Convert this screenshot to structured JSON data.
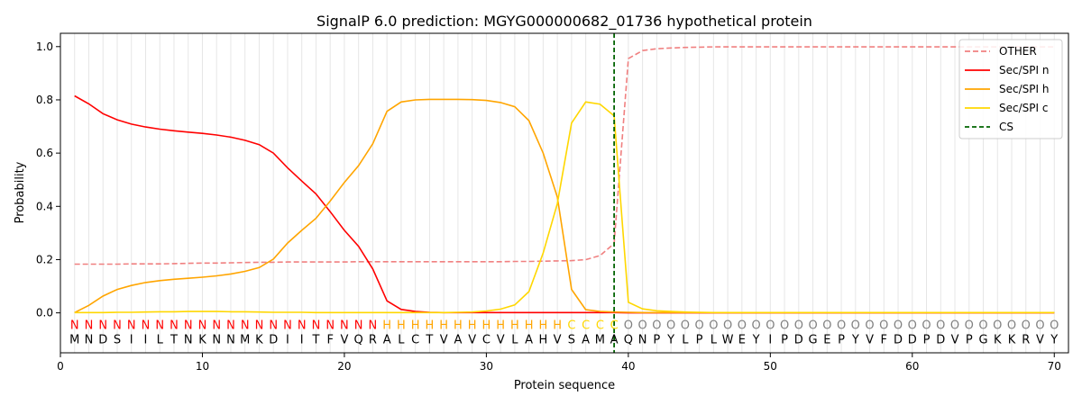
{
  "chart_data": {
    "type": "line",
    "title": "SignalP 6.0 prediction: MGYG000000682_01736 hypothetical protein",
    "xlabel": "Protein sequence",
    "ylabel": "Probability",
    "xlim": [
      0,
      71
    ],
    "ylim": [
      -0.15,
      1.05
    ],
    "xticks": [
      0,
      10,
      20,
      30,
      40,
      50,
      60,
      70
    ],
    "yticks": [
      0.0,
      0.2,
      0.4,
      0.6,
      0.8,
      1.0
    ],
    "ytick_labels": [
      "0.0",
      "0.2",
      "0.4",
      "0.6",
      "0.8",
      "1.0"
    ],
    "grid": "vertical lines at every residue",
    "legend_position": "top-right",
    "cleavage_site": {
      "name": "CS",
      "x": 39,
      "color": "#006400"
    },
    "sequence": [
      "M",
      "N",
      "D",
      "S",
      "I",
      "I",
      "L",
      "T",
      "N",
      "K",
      "N",
      "N",
      "M",
      "K",
      "D",
      "I",
      "I",
      "T",
      "F",
      "V",
      "Q",
      "R",
      "A",
      "L",
      "C",
      "T",
      "V",
      "A",
      "V",
      "C",
      "V",
      "L",
      "A",
      "H",
      "V",
      "S",
      "A",
      "M",
      "A",
      "Q",
      "N",
      "P",
      "Y",
      "L",
      "P",
      "L",
      "W",
      "E",
      "Y",
      "I",
      "P",
      "D",
      "G",
      "E",
      "P",
      "Y",
      "V",
      "F",
      "D",
      "D",
      "P",
      "D",
      "V",
      "P",
      "G",
      "K",
      "K",
      "R",
      "V",
      "Y"
    ],
    "labels": [
      "N",
      "N",
      "N",
      "N",
      "N",
      "N",
      "N",
      "N",
      "N",
      "N",
      "N",
      "N",
      "N",
      "N",
      "N",
      "N",
      "N",
      "N",
      "N",
      "N",
      "N",
      "N",
      "H",
      "H",
      "H",
      "H",
      "H",
      "H",
      "H",
      "H",
      "H",
      "H",
      "H",
      "H",
      "H",
      "C",
      "C",
      "C",
      "C",
      "O",
      "O",
      "O",
      "O",
      "O",
      "O",
      "O",
      "O",
      "O",
      "O",
      "O",
      "O",
      "O",
      "O",
      "O",
      "O",
      "O",
      "O",
      "O",
      "O",
      "O",
      "O",
      "O",
      "O",
      "O",
      "O",
      "O",
      "O",
      "O",
      "O",
      "O"
    ],
    "label_colors": {
      "N": "#ff0000",
      "H": "#ffa500",
      "C": "#ffd700",
      "O": "#808080"
    },
    "series": [
      {
        "name": "OTHER",
        "color": "#f08080",
        "dash": true,
        "values": [
          0.183,
          0.183,
          0.183,
          0.183,
          0.184,
          0.184,
          0.184,
          0.185,
          0.186,
          0.187,
          0.187,
          0.188,
          0.189,
          0.19,
          0.19,
          0.191,
          0.191,
          0.191,
          0.191,
          0.191,
          0.192,
          0.192,
          0.192,
          0.192,
          0.192,
          0.192,
          0.192,
          0.192,
          0.192,
          0.192,
          0.192,
          0.193,
          0.193,
          0.194,
          0.195,
          0.196,
          0.2,
          0.215,
          0.26,
          0.955,
          0.985,
          0.992,
          0.995,
          0.997,
          0.998,
          0.999,
          0.999,
          0.999,
          0.999,
          0.999,
          0.999,
          0.999,
          0.999,
          0.999,
          0.999,
          0.999,
          0.999,
          0.999,
          0.999,
          0.999,
          0.999,
          0.999,
          0.999,
          0.999,
          0.999,
          0.999,
          0.999,
          0.999,
          0.999,
          0.999
        ]
      },
      {
        "name": "Sec/SPI n",
        "color": "#ff0000",
        "dash": false,
        "values": [
          0.815,
          0.785,
          0.748,
          0.725,
          0.709,
          0.698,
          0.69,
          0.684,
          0.679,
          0.674,
          0.668,
          0.66,
          0.648,
          0.632,
          0.6,
          0.545,
          0.495,
          0.447,
          0.38,
          0.31,
          0.25,
          0.165,
          0.045,
          0.013,
          0.005,
          0.002,
          0.001,
          0.001,
          0.001,
          0.001,
          0.001,
          0.001,
          0.001,
          0.001,
          0.001,
          0.001,
          0.001,
          0.001,
          0.001,
          0,
          0,
          0,
          0,
          0,
          0,
          0,
          0,
          0,
          0,
          0,
          0,
          0,
          0,
          0,
          0,
          0,
          0,
          0,
          0,
          0,
          0,
          0,
          0,
          0,
          0,
          0,
          0,
          0,
          0,
          0
        ]
      },
      {
        "name": "Sec/SPI h",
        "color": "#ffa500",
        "dash": false,
        "values": [
          0.001,
          0.028,
          0.063,
          0.088,
          0.103,
          0.114,
          0.121,
          0.126,
          0.13,
          0.134,
          0.139,
          0.146,
          0.156,
          0.17,
          0.202,
          0.262,
          0.31,
          0.355,
          0.42,
          0.49,
          0.553,
          0.635,
          0.757,
          0.792,
          0.8,
          0.802,
          0.802,
          0.802,
          0.801,
          0.798,
          0.79,
          0.774,
          0.722,
          0.6,
          0.435,
          0.088,
          0.012,
          0.005,
          0.003,
          0.002,
          0.001,
          0.001,
          0.001,
          0.001,
          0.001,
          0.001,
          0.001,
          0.001,
          0.001,
          0.001,
          0.001,
          0.001,
          0.001,
          0.001,
          0.001,
          0.001,
          0.001,
          0.001,
          0.001,
          0.001,
          0.001,
          0.001,
          0.001,
          0.001,
          0.001,
          0.001,
          0.001,
          0.001,
          0.001,
          0.001
        ]
      },
      {
        "name": "Sec/SPI c",
        "color": "#ffd700",
        "dash": false,
        "values": [
          0.001,
          0.001,
          0.001,
          0.002,
          0.002,
          0.003,
          0.004,
          0.004,
          0.005,
          0.005,
          0.005,
          0.004,
          0.004,
          0.003,
          0.002,
          0.002,
          0.002,
          0.001,
          0.001,
          0.001,
          0.001,
          0.001,
          0.001,
          0.001,
          0.001,
          0.001,
          0.001,
          0.002,
          0.003,
          0.007,
          0.014,
          0.03,
          0.08,
          0.225,
          0.41,
          0.713,
          0.792,
          0.784,
          0.74,
          0.04,
          0.015,
          0.008,
          0.005,
          0.003,
          0.002,
          0.001,
          0.001,
          0.001,
          0.001,
          0.001,
          0.001,
          0.001,
          0.001,
          0.001,
          0.001,
          0.001,
          0.001,
          0.001,
          0.001,
          0.001,
          0.001,
          0.001,
          0.001,
          0.001,
          0.001,
          0.001,
          0.001,
          0.001,
          0.001,
          0.001
        ]
      }
    ],
    "legend": [
      "OTHER",
      "Sec/SPI n",
      "Sec/SPI h",
      "Sec/SPI c",
      "CS"
    ]
  }
}
